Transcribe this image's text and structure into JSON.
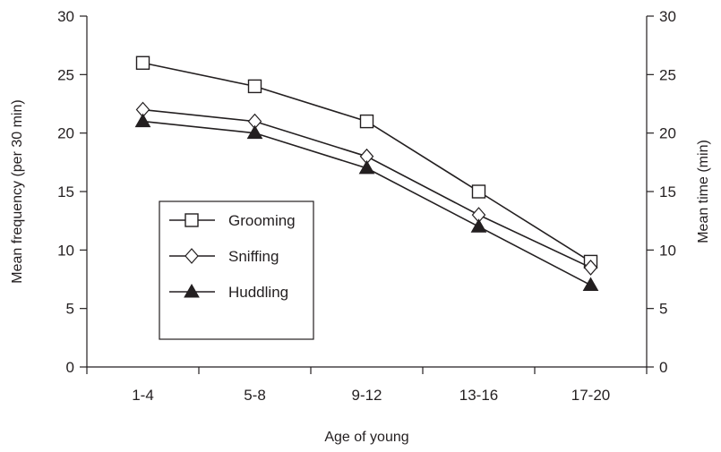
{
  "chart_data": {
    "type": "line",
    "title": "",
    "xlabel": "Age of young",
    "ylabel_left": "Mean frequency (per 30 min)",
    "ylabel_right": "Mean time (min)",
    "categories": [
      "1-4",
      "5-8",
      "9-12",
      "13-16",
      "17-20"
    ],
    "ylim_left": [
      0,
      30
    ],
    "ylim_right": [
      0,
      30
    ],
    "yticks_left": [
      "0",
      "5",
      "10",
      "15",
      "20",
      "25",
      "30"
    ],
    "yticks_right": [
      "0",
      "5",
      "10",
      "15",
      "20",
      "25",
      "30"
    ],
    "grid": false,
    "legend_position": "left, middle",
    "series": [
      {
        "name": "Grooming",
        "marker": "open-square",
        "values": [
          26,
          24,
          21,
          15,
          9
        ]
      },
      {
        "name": "Sniffing",
        "marker": "open-diamond",
        "values": [
          22,
          21,
          18,
          13,
          8.5
        ]
      },
      {
        "name": "Huddling",
        "marker": "filled-triangle",
        "values": [
          21,
          20,
          17,
          12,
          7
        ]
      }
    ],
    "colors": {
      "line": "#231f20",
      "marker_fill_open": "#ffffff",
      "axis": "#231f20"
    }
  }
}
